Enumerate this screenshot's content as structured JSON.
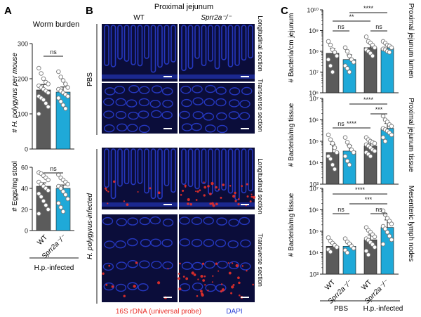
{
  "panels": {
    "A": {
      "letter": "A"
    },
    "B": {
      "letter": "B"
    },
    "C": {
      "letter": "C"
    }
  },
  "panel_b": {
    "title": "Proximal jejunum",
    "columns": [
      "WT",
      "Sprr2a⁻/⁻"
    ],
    "groups": [
      {
        "label": "PBS",
        "rows": [
          "Longitudinal section",
          "Transverse section"
        ]
      },
      {
        "label": "H. polygyrus-infected",
        "rows": [
          "Longitudinal section",
          "Transverse section"
        ]
      }
    ],
    "legend": {
      "probe": "16S rDNA (universal probe)",
      "stain": "DAPI"
    },
    "colors": {
      "probe": "#e8302a",
      "stain": "#2a3fd6",
      "tissue_bg": "#0b0d3a"
    }
  },
  "panel_a_xlabels": [
    "WT",
    "Sprr2a⁻/⁻"
  ],
  "panel_a_group": "H.p.-infected",
  "panel_c_xlabels": [
    "WT",
    "Sprr2a⁻/⁻",
    "WT",
    "Sprr2a⁻/⁻"
  ],
  "panel_c_groups": [
    "PBS",
    "H.p.-infected"
  ],
  "colors": {
    "wt": "#5b5b5b",
    "ko": "#1fa9d8",
    "point_fill": "#ffffff",
    "point_stroke": "#7a7a7a"
  },
  "chart_data": [
    {
      "id": "A-top",
      "type": "bar",
      "subtitle": "Worm burden",
      "ylabel": "# H. polygyrus per mouse",
      "ylim": [
        0,
        300
      ],
      "yticks": [
        0,
        100,
        200,
        300
      ],
      "scale": "linear",
      "categories": [
        "WT",
        "Sprr2a⁻/⁻"
      ],
      "values": [
        168,
        162
      ],
      "points": [
        [
          230,
          215,
          200,
          190,
          185,
          180,
          175,
          170,
          165,
          160,
          150,
          145,
          140,
          130,
          120,
          100
        ],
        [
          220,
          205,
          195,
          185,
          175,
          170,
          165,
          160,
          155,
          150,
          145,
          135,
          125,
          115
        ]
      ],
      "comparisons": [
        {
          "label": "ns"
        }
      ]
    },
    {
      "id": "A-bottom",
      "type": "bar",
      "ylabel": "# Eggs/mg stool",
      "ylim": [
        0,
        60
      ],
      "yticks": [
        0,
        20,
        40,
        60
      ],
      "scale": "linear",
      "categories": [
        "WT",
        "Sprr2a⁻/⁻"
      ],
      "values": [
        42,
        40
      ],
      "points": [
        [
          55,
          54,
          52,
          50,
          48,
          46,
          44,
          42,
          40,
          38,
          35,
          32,
          28,
          24,
          20,
          16
        ],
        [
          53,
          50,
          48,
          46,
          44,
          42,
          40,
          37,
          34,
          30,
          26,
          22,
          18
        ]
      ],
      "comparisons": [
        {
          "label": "ns"
        }
      ]
    },
    {
      "id": "C-top",
      "type": "bar",
      "side_label": "Proximal jejunum lumen",
      "ylabel": "# Bacteria/cm jejunum",
      "ylim": [
        1000000,
        10000000000
      ],
      "scale": "log",
      "yticks": [
        "10⁶",
        "10⁷",
        "10⁸",
        "10⁹",
        "10¹⁰"
      ],
      "categories": [
        "PBS WT",
        "PBS Sprr2a⁻/⁻",
        "H.p.-infected WT",
        "H.p.-infected Sprr2a⁻/⁻"
      ],
      "values": [
        80000000,
        40000000,
        150000000,
        140000000
      ],
      "points": [
        [
          300000000,
          200000000,
          120000000,
          90000000,
          60000000,
          40000000,
          20000000,
          10000000
        ],
        [
          150000000,
          100000000,
          60000000,
          40000000,
          30000000,
          20000000,
          15000000,
          10000000
        ],
        [
          500000000,
          300000000,
          250000000,
          200000000,
          150000000,
          120000000,
          100000000,
          80000000,
          60000000
        ],
        [
          300000000,
          250000000,
          200000000,
          180000000,
          150000000,
          130000000,
          120000000,
          100000000,
          90000000
        ]
      ],
      "comparisons": [
        {
          "label": "ns"
        },
        {
          "label": "ns"
        },
        {
          "label": "**"
        },
        {
          "label": "****"
        }
      ]
    },
    {
      "id": "C-middle",
      "type": "bar",
      "side_label": "Proximal jejunum tissue",
      "ylabel": "# Bacteria/mg tissue",
      "ylim": [
        1000,
        10000000
      ],
      "scale": "log",
      "yticks": [
        "10³",
        "10⁴",
        "10⁵",
        "10⁶",
        "10⁷"
      ],
      "categories": [
        "PBS WT",
        "PBS Sprr2a⁻/⁻",
        "H.p.-infected WT",
        "H.p.-infected Sprr2a⁻/⁻"
      ],
      "values": [
        30000,
        35000,
        60000,
        400000
      ],
      "points": [
        [
          200000,
          120000,
          80000,
          50000,
          30000,
          20000,
          15000,
          8000,
          5000
        ],
        [
          150000,
          90000,
          60000,
          40000,
          30000,
          20000,
          12000,
          8000
        ],
        [
          150000,
          120000,
          100000,
          90000,
          80000,
          70000,
          60000,
          50000,
          40000,
          35000,
          30000,
          25000,
          20000
        ],
        [
          1500000,
          1000000,
          800000,
          600000,
          500000,
          400000,
          350000,
          300000,
          250000,
          200000,
          150000,
          100000
        ]
      ],
      "comparisons": [
        {
          "label": "ns"
        },
        {
          "label": "****"
        },
        {
          "label": "***"
        },
        {
          "label": "****"
        }
      ]
    },
    {
      "id": "C-bottom",
      "type": "bar",
      "side_label": "Mesenteric lymph nodes",
      "ylabel": "# Bacteria/mg tissue",
      "ylim": [
        1000,
        10000000
      ],
      "scale": "log",
      "yticks": [
        "10³",
        "10⁴",
        "10⁵",
        "10⁶",
        "10⁷"
      ],
      "categories": [
        "PBS WT",
        "PBS Sprr2a⁻/⁻",
        "H.p.-infected WT",
        "H.p.-infected Sprr2a⁻/⁻"
      ],
      "values": [
        20000,
        20000,
        40000,
        150000
      ],
      "points": [
        [
          50000,
          35000,
          28000,
          22000,
          18000,
          14000,
          11000
        ],
        [
          45000,
          32000,
          26000,
          20000,
          16000,
          13000,
          10000
        ],
        [
          150000,
          110000,
          90000,
          70000,
          55000,
          45000,
          38000,
          30000,
          24000,
          18000,
          12000,
          8000
        ],
        [
          900000,
          600000,
          400000,
          300000,
          220000,
          170000,
          130000,
          90000,
          60000,
          40000,
          25000
        ]
      ],
      "comparisons": [
        {
          "label": "ns"
        },
        {
          "label": "ns"
        },
        {
          "label": "***"
        },
        {
          "label": "****"
        }
      ]
    }
  ]
}
